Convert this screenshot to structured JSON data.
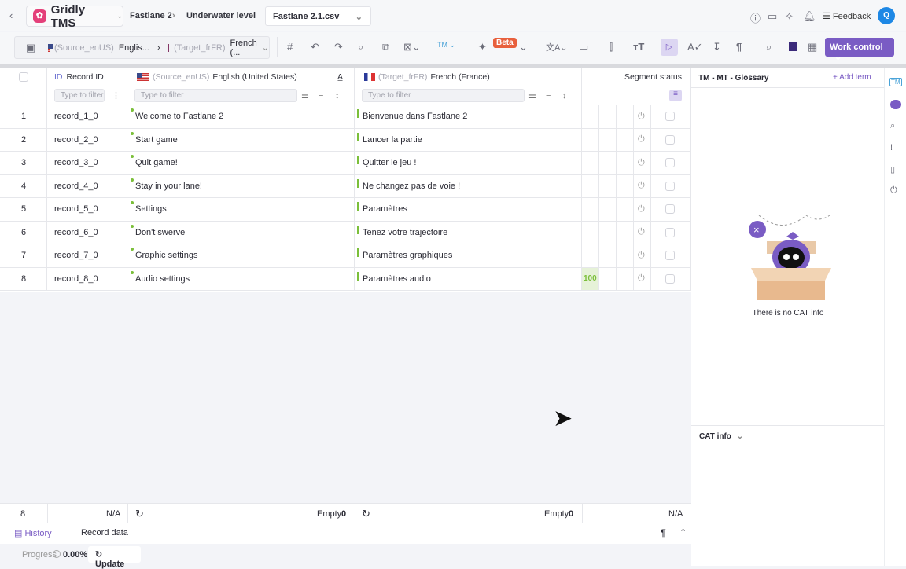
{
  "topbar": {
    "brand": "Gridly TMS",
    "breadcrumbs": [
      "Fastlane 2",
      "Underwater level"
    ],
    "file": "Fastlane 2.1.csv",
    "feedback": "Feedback",
    "avatar": "Q"
  },
  "toolbar": {
    "source_tag": "(Source_enUS)",
    "source_short": "Englis...",
    "target_tag": "(Target_frFR)",
    "target_short": "French (...",
    "beta": "Beta",
    "work_control": "Work control"
  },
  "grid": {
    "headers": {
      "record_id_prefix": "ID",
      "record_id": "Record ID",
      "source_tag": "(Source_enUS)",
      "source": "English (United States)",
      "target_tag": "(Target_frFR)",
      "target": "French (France)",
      "segment_status": "Segment status"
    },
    "filter_placeholder": "Type to filter",
    "rows": [
      {
        "n": "1",
        "id": "record_1_0",
        "src": "Welcome to Fastlane 2",
        "tgt": "Bienvenue dans Fastlane 2",
        "score": ""
      },
      {
        "n": "2",
        "id": "record_2_0",
        "src": "Start game",
        "tgt": "Lancer la partie",
        "score": ""
      },
      {
        "n": "3",
        "id": "record_3_0",
        "src": "Quit game!",
        "tgt": "Quitter le jeu !",
        "score": ""
      },
      {
        "n": "4",
        "id": "record_4_0",
        "src": "Stay in your lane!",
        "tgt": "Ne changez pas de voie !",
        "score": ""
      },
      {
        "n": "5",
        "id": "record_5_0",
        "src": "Settings",
        "tgt": "Paramètres",
        "score": ""
      },
      {
        "n": "6",
        "id": "record_6_0",
        "src": "Don't swerve",
        "tgt": "Tenez votre trajectoire",
        "score": ""
      },
      {
        "n": "7",
        "id": "record_7_0",
        "src": "Graphic settings",
        "tgt": "Paramètres graphiques",
        "score": ""
      },
      {
        "n": "8",
        "id": "record_8_0",
        "src": "Audio settings",
        "tgt": "Paramètres audio",
        "score": "100"
      }
    ],
    "footer": {
      "count": "8",
      "id_na": "N/A",
      "src_empty": "Empty",
      "src_empty_n": "0",
      "tgt_empty": "Empty",
      "tgt_empty_n": "0",
      "status_na": "N/A"
    }
  },
  "bottom": {
    "history": "History",
    "record_data": "Record data",
    "progress_label": "Progress",
    "progress": "0.00%",
    "update": "Update"
  },
  "panel": {
    "title": "TM - MT - Glossary",
    "add_term": "+ Add term",
    "empty": "There is no CAT info",
    "cat_info": "CAT info"
  },
  "colors": {
    "accent": "#7a5cc4",
    "beta": "#e8603d",
    "match": "#7bbf3a"
  }
}
